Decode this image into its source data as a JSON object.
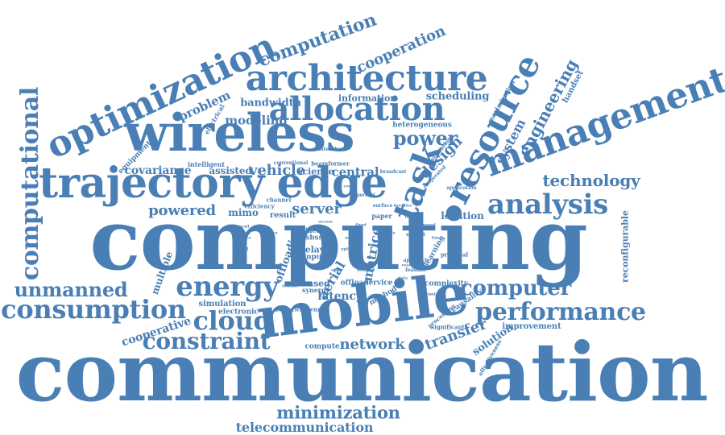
{
  "style": {
    "word_color": "#4a7fb5",
    "background": "#ffffff"
  },
  "words": [
    {
      "text": "communication"
    },
    {
      "text": "computing"
    },
    {
      "text": "mobile"
    },
    {
      "text": "wireless"
    },
    {
      "text": "trajectory"
    },
    {
      "text": "edge"
    },
    {
      "text": "resource"
    },
    {
      "text": "management"
    },
    {
      "text": "optimization"
    },
    {
      "text": "architecture"
    },
    {
      "text": "allocation"
    },
    {
      "text": "computational"
    },
    {
      "text": "task"
    },
    {
      "text": "energy"
    },
    {
      "text": "consumption"
    },
    {
      "text": "unmanned"
    },
    {
      "text": "performance"
    },
    {
      "text": "analysis"
    },
    {
      "text": "computer"
    },
    {
      "text": "cloud"
    },
    {
      "text": "constraint"
    },
    {
      "text": "technology"
    },
    {
      "text": "network"
    },
    {
      "text": "minimization"
    },
    {
      "text": "telecommunication"
    },
    {
      "text": "computation"
    },
    {
      "text": "cooperation"
    },
    {
      "text": "power"
    },
    {
      "text": "engineering"
    },
    {
      "text": "system"
    },
    {
      "text": "design"
    },
    {
      "text": "vehicle"
    },
    {
      "text": "central"
    },
    {
      "text": "server"
    },
    {
      "text": "powered"
    },
    {
      "text": "mimo"
    },
    {
      "text": "transfer"
    },
    {
      "text": "aerial"
    },
    {
      "text": "latency"
    },
    {
      "text": "modeling"
    },
    {
      "text": "bandwidth"
    },
    {
      "text": "problem"
    },
    {
      "text": "information"
    },
    {
      "text": "scheduling"
    },
    {
      "text": "covariance"
    },
    {
      "text": "assisted"
    },
    {
      "text": "reconfigurable"
    },
    {
      "text": "cooperative"
    },
    {
      "text": "simulation"
    },
    {
      "text": "location"
    },
    {
      "text": "offloading"
    },
    {
      "text": "matrice"
    },
    {
      "text": "solution"
    },
    {
      "text": "improvement"
    },
    {
      "text": "complexity"
    },
    {
      "text": "multiple"
    },
    {
      "text": "handset"
    },
    {
      "text": "maximization"
    },
    {
      "text": "heterogeneous"
    },
    {
      "text": "learning"
    },
    {
      "text": "causality"
    },
    {
      "text": "electrical"
    },
    {
      "text": "equipment"
    },
    {
      "text": "intelligent"
    },
    {
      "text": "science"
    },
    {
      "text": "result"
    },
    {
      "text": "relay"
    },
    {
      "text": "input"
    },
    {
      "text": "based"
    },
    {
      "text": "offload"
    },
    {
      "text": "service"
    },
    {
      "text": "numerical"
    },
    {
      "text": "electronic"
    },
    {
      "text": "compute"
    },
    {
      "text": "significant"
    },
    {
      "text": "method"
    },
    {
      "text": "efficiency"
    },
    {
      "text": "aided"
    },
    {
      "text": "sbss"
    },
    {
      "text": "practical"
    },
    {
      "text": "estimation"
    },
    {
      "text": "antenna"
    },
    {
      "text": "synergy"
    },
    {
      "text": "paper"
    },
    {
      "text": "channel"
    },
    {
      "text": "beamformer"
    },
    {
      "text": "conventional"
    },
    {
      "text": "broadcast"
    },
    {
      "text": "application"
    },
    {
      "text": "subject"
    },
    {
      "text": "approach"
    },
    {
      "text": "processing"
    },
    {
      "text": "effectiveness"
    },
    {
      "text": "feasible"
    },
    {
      "text": "perfect"
    },
    {
      "text": "cooperated"
    },
    {
      "text": "surface"
    },
    {
      "text": "release"
    },
    {
      "text": "intensive"
    },
    {
      "text": "real"
    },
    {
      "text": "optimized"
    },
    {
      "text": "state"
    },
    {
      "text": "fixed"
    },
    {
      "text": "node"
    },
    {
      "text": "time"
    },
    {
      "text": "cost"
    },
    {
      "text": "overall"
    },
    {
      "text": "distance"
    },
    {
      "text": "signal"
    },
    {
      "text": "data"
    },
    {
      "text": "proposed"
    },
    {
      "text": "user"
    },
    {
      "text": "joint"
    },
    {
      "text": "device"
    },
    {
      "text": "iterative"
    },
    {
      "text": "access"
    },
    {
      "text": "uplink"
    },
    {
      "text": "rate"
    },
    {
      "text": "demand"
    },
    {
      "text": "flight"
    }
  ]
}
